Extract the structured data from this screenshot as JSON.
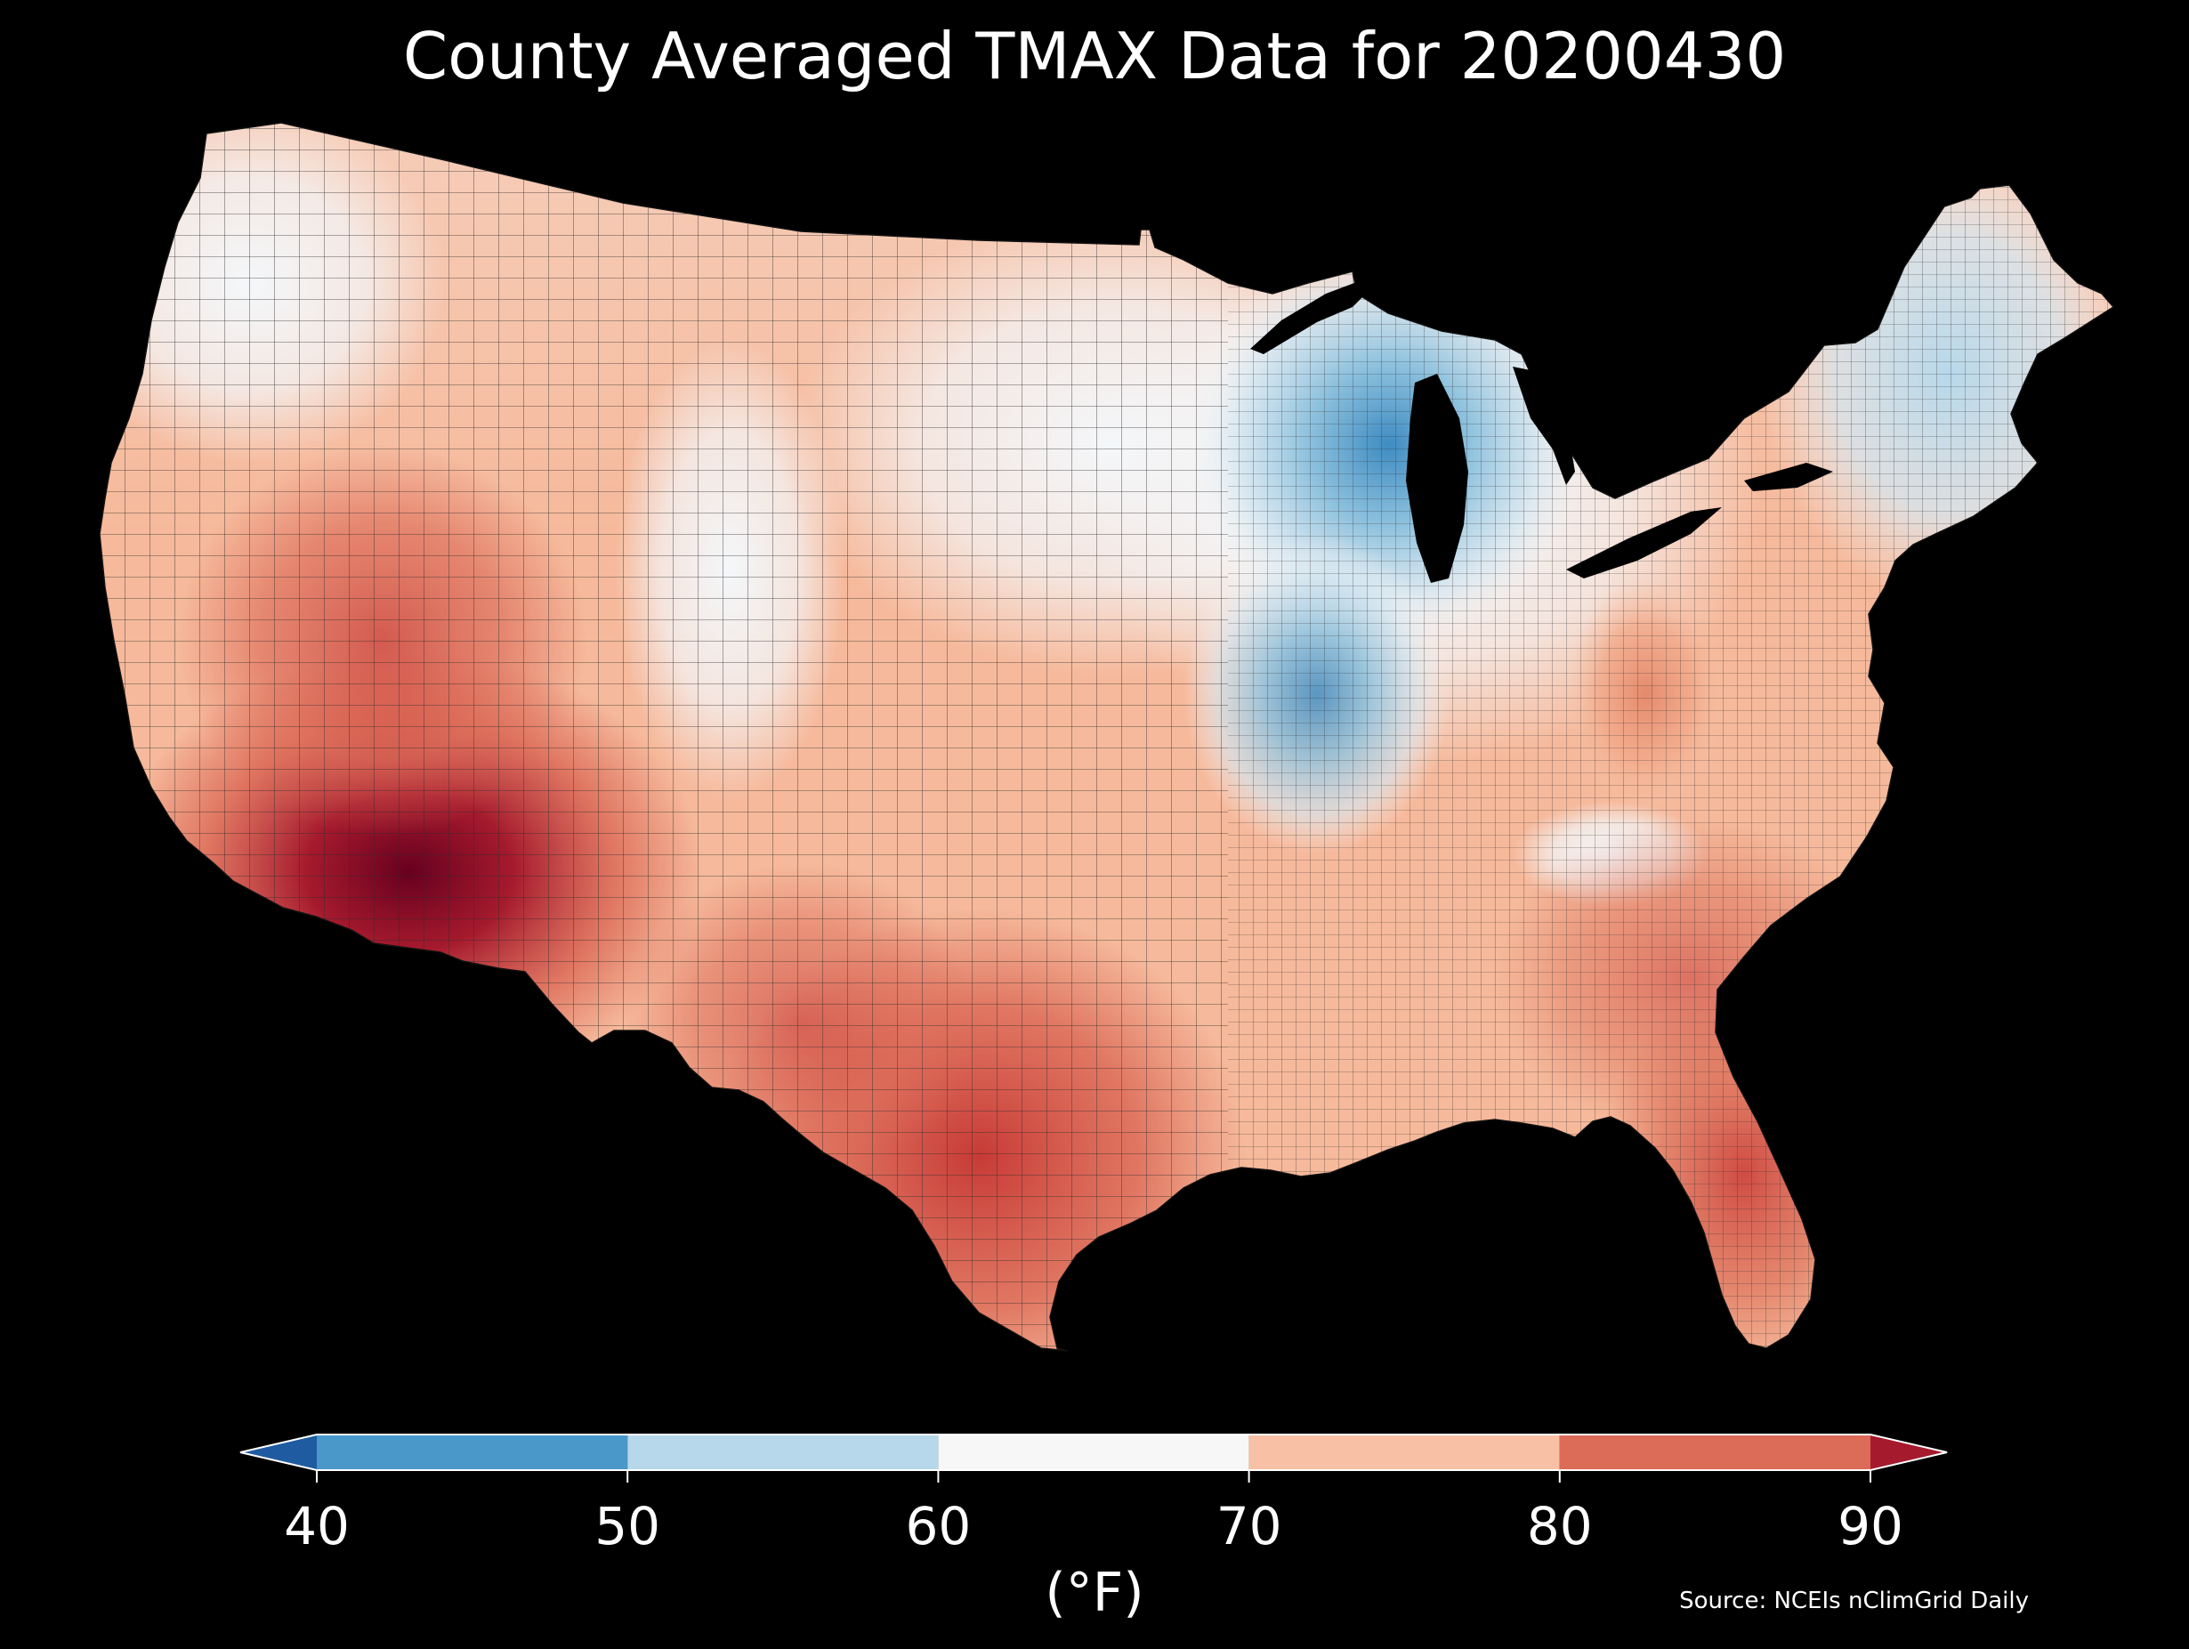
{
  "title": "County Averaged TMAX Data for 20200430",
  "colorbar": {
    "ticks": [
      "40",
      "50",
      "60",
      "70",
      "80",
      "90"
    ],
    "unit": "(°F)",
    "bins": [
      {
        "from": 40,
        "to": 50,
        "color": "#4a98c9"
      },
      {
        "from": 50,
        "to": 60,
        "color": "#b7d8ea"
      },
      {
        "from": 60,
        "to": 70,
        "color": "#f7f7f7"
      },
      {
        "from": 70,
        "to": 80,
        "color": "#f8c1a5"
      },
      {
        "from": 80,
        "to": 90,
        "color": "#dc6b58"
      }
    ],
    "under_color": "#1f5ba0",
    "over_color": "#a51a2d"
  },
  "source": "Source: NCEIs nClimGrid Daily",
  "colors": {
    "background": "#000000",
    "lakes": "#000000",
    "county_border": "#222222"
  }
}
